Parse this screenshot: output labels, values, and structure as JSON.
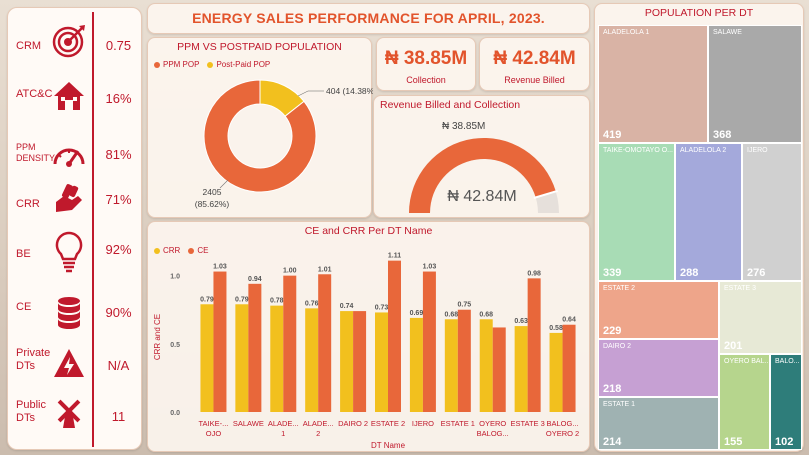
{
  "header": {
    "title": "ENERGY SALES PERFORMANCE FOR APRIL, 2023."
  },
  "kpis": [
    {
      "label": "CRM",
      "value": "0.75",
      "icon": "target-icon"
    },
    {
      "label": "ATC&C",
      "value": "16%",
      "icon": "house-icon"
    },
    {
      "label": "PPM DENSITY",
      "value": "81%",
      "icon": "speedometer-icon"
    },
    {
      "label": "CRR",
      "value": "71%",
      "icon": "hand-money-icon"
    },
    {
      "label": "BE",
      "value": "92%",
      "icon": "lightbulb-icon"
    },
    {
      "label": "CE",
      "value": "90%",
      "icon": "database-icon"
    },
    {
      "label": "Private DTs",
      "value": "N/A",
      "icon": "shield-bolt-icon"
    },
    {
      "label": "Public DTs",
      "value": "11",
      "icon": "windmill-icon"
    }
  ],
  "cards": {
    "collection_value": "₦ 38.85M",
    "collection_label": "Collection",
    "billed_value": "₦ 42.84M",
    "billed_label": "Revenue Billed"
  },
  "colors": {
    "ppm": "#e8673a",
    "postpaid": "#f2c01e",
    "crr": "#f2c01e",
    "ce": "#e8673a",
    "accent": "#c0192c"
  },
  "chart_data": [
    {
      "type": "pie",
      "title": "PPM VS POSTPAID POPULATION",
      "labels": [
        "PPM POP",
        "Post-Paid POP"
      ],
      "values": [
        2405,
        404
      ],
      "percent_labels": [
        "2405 (85.62%)",
        "404 (14.38%)"
      ]
    },
    {
      "type": "gauge",
      "title": "Revenue Billed and Collection",
      "value": 38.85,
      "max": 42.84,
      "value_label": "₦ 38.85M",
      "max_label": "₦ 42.84M"
    },
    {
      "type": "bar",
      "title": "CE and CRR Per DT Name",
      "xlabel": "DT Name",
      "ylabel": "CRR and CE",
      "ylim": [
        0,
        1.1
      ],
      "yticks": [
        "0.0",
        "0.5",
        "1.0"
      ],
      "ytick_values": [
        0,
        0.5,
        1.0
      ],
      "categories": [
        "TAIKE-... OJO",
        "SALAWE",
        "ALADE... 1",
        "ALADE... 2",
        "DAIRO 2",
        "ESTATE 2",
        "IJERO",
        "ESTATE 1",
        "OYERO BALOG...",
        "ESTATE 3",
        "BALOG... OYERO 2"
      ],
      "series": [
        {
          "name": "CRR",
          "values": [
            0.79,
            0.79,
            0.78,
            0.76,
            0.74,
            0.73,
            0.69,
            0.68,
            0.68,
            0.63,
            0.58
          ]
        },
        {
          "name": "CE",
          "values": [
            1.03,
            0.94,
            1.0,
            1.01,
            0.74,
            1.11,
            1.03,
            0.75,
            0.62,
            0.98,
            0.64
          ]
        }
      ],
      "data_labels": {
        "CRR": [
          "0.79",
          "0.79",
          "0.78",
          "0.76",
          "0.74",
          "0.73",
          "0.69",
          "0.68",
          "0.68",
          "0.63",
          "0.58"
        ],
        "CE": [
          "1.03",
          "0.94",
          "1.00",
          "1.01",
          "",
          "1.11",
          "1.03",
          "0.75",
          "",
          "0.98",
          "0.64"
        ]
      }
    },
    {
      "type": "treemap",
      "title": "POPULATION PER DT",
      "items": [
        {
          "name": "ALADELOLA 1",
          "value": 419,
          "color": "#d9b3a5"
        },
        {
          "name": "SALAWE",
          "value": 368,
          "color": "#a9a9a9"
        },
        {
          "name": "TAIKE-OMOTAYO O...",
          "value": 339,
          "color": "#a8dcb5"
        },
        {
          "name": "ALADELOLA 2",
          "value": 288,
          "color": "#a4a9db"
        },
        {
          "name": "IJERO",
          "value": 276,
          "color": "#d0d0d0"
        },
        {
          "name": "ESTATE 2",
          "value": 229,
          "color": "#eea58a"
        },
        {
          "name": "ESTATE 3",
          "value": 201,
          "color": "#e7e9d6"
        },
        {
          "name": "DAIRO 2",
          "value": 218,
          "color": "#c6a0d3"
        },
        {
          "name": "OYERO BAL...",
          "value": 155,
          "color": "#b6d58d"
        },
        {
          "name": "BALO...",
          "value": 102,
          "color": "#2e7d7a"
        },
        {
          "name": "ESTATE 1",
          "value": 214,
          "color": "#9fb2b2"
        }
      ]
    }
  ]
}
